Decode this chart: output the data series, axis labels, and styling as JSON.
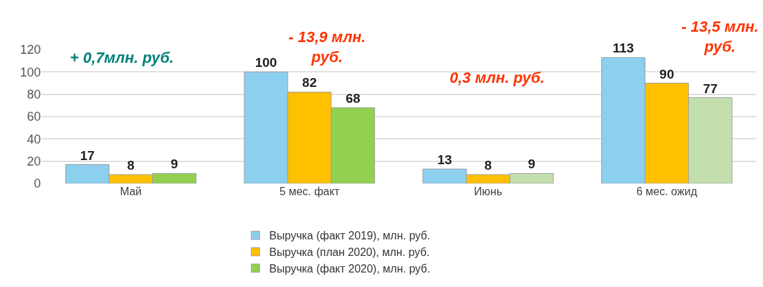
{
  "chart_data": {
    "type": "bar",
    "categories": [
      "Май",
      "5 мес. факт",
      "Июнь",
      "6 мес. ожид"
    ],
    "series": [
      {
        "name": "Выручка (факт 2019), млн. руб.",
        "color": "#8ccfee",
        "values": [
          17,
          100,
          13,
          113
        ]
      },
      {
        "name": "Выручка (план 2020), млн. руб.",
        "color": "#ffc000",
        "values": [
          8,
          82,
          8,
          90
        ]
      },
      {
        "name": "Выручка (факт 2020), млн. руб.",
        "colors": [
          "#92d050",
          "#92d050",
          "#c4dfae",
          "#c4dfae"
        ],
        "values": [
          9,
          68,
          9,
          77
        ]
      }
    ],
    "annotations": [
      "+ 0,7млн. руб.",
      "- 13,9 млн. руб.",
      "0,3 млн. руб.",
      "- 13,5 млн. руб."
    ],
    "ylim": [
      0,
      120
    ],
    "yticks": [
      0,
      20,
      40,
      60,
      80,
      100,
      120
    ],
    "grid": "y",
    "legend": "bottom",
    "data_labels": true
  }
}
